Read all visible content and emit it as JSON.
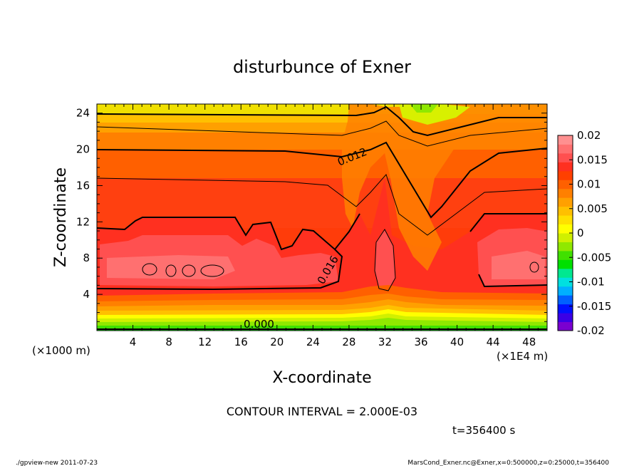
{
  "chart_data": {
    "type": "heatmap",
    "title": "disturbunce of Exner",
    "xlabel": "X-coordinate",
    "ylabel": "Z-coordinate",
    "x_unit_left": "(×1000 m)",
    "x_unit_right": "(×1E4 m)",
    "xlim": [
      0,
      50
    ],
    "ylim": [
      0,
      25
    ],
    "x_ticks": [
      "4",
      "8",
      "12",
      "16",
      "20",
      "24",
      "28",
      "32",
      "36",
      "40",
      "44",
      "48"
    ],
    "y_ticks": [
      "4",
      "8",
      "12",
      "16",
      "20",
      "24"
    ],
    "contour_interval_text": "CONTOUR INTERVAL = 2.000E-03",
    "time_text": "t=356400 s",
    "contour_labels": [
      {
        "text": "0.012",
        "x": 28.5,
        "y": 18.8
      },
      {
        "text": "0.016",
        "x": 26.0,
        "y": 6.5
      },
      {
        "text": "0.000",
        "x": 18.0,
        "y": 0.3
      }
    ],
    "colorbar": {
      "vmin": -0.02,
      "vmax": 0.02,
      "ticks": [
        "0.02",
        "0.015",
        "0.01",
        "0.005",
        "0",
        "-0.005",
        "-0.01",
        "-0.015",
        "-0.02"
      ],
      "colors": [
        "#7a00d0",
        "#3a00e6",
        "#0010ff",
        "#0060ff",
        "#00b0ff",
        "#00e0e0",
        "#00e890",
        "#00e000",
        "#40e000",
        "#90e800",
        "#d0f000",
        "#ffff00",
        "#ffe000",
        "#ffc000",
        "#ffa000",
        "#ff8000",
        "#ff6000",
        "#ff4000",
        "#ff3020",
        "#ff5050",
        "#ff7070",
        "#ff9090"
      ]
    }
  },
  "footer": {
    "left": "./gpview-new   2011-07-23",
    "right": "MarsCond_Exner.nc@Exner,x=0:500000,z=0:25000,t=356400"
  }
}
